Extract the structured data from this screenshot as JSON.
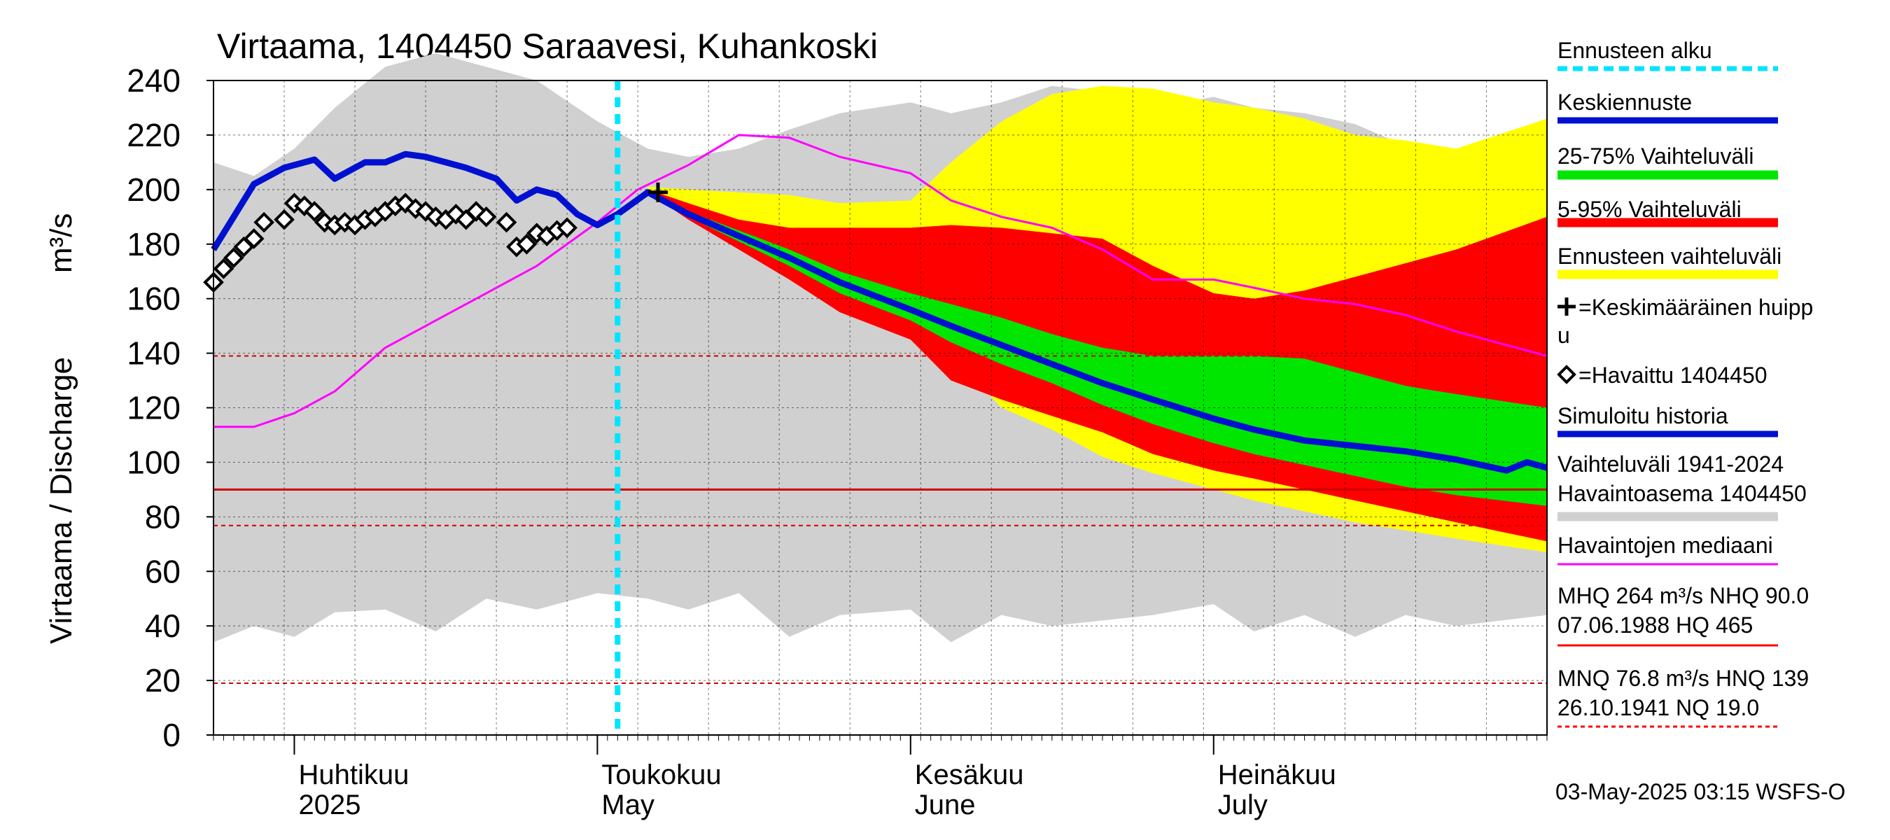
{
  "chart_data": {
    "type": "area",
    "title": "Virtaama, 1404450 Saraavesi, Kuhankoski",
    "ylabel": "Virtaama / Discharge",
    "yunit": "m³/s",
    "ylim": [
      0,
      240
    ],
    "yticks": [
      0,
      20,
      40,
      60,
      80,
      100,
      120,
      140,
      160,
      180,
      200,
      220,
      240
    ],
    "xlim": [
      "2025-03-24",
      "2025-08-03"
    ],
    "month_labels": [
      {
        "fi": "Huhtikuu",
        "en": "2025",
        "date": "2025-04-01"
      },
      {
        "fi": "Toukokuu",
        "en": "May",
        "date": "2025-05-01"
      },
      {
        "fi": "Kesäkuu",
        "en": "June",
        "date": "2025-06-01"
      },
      {
        "fi": "Heinäkuu",
        "en": "July",
        "date": "2025-07-01"
      }
    ],
    "forecast_start": "2025-05-03",
    "reference_lines": [
      {
        "name": "MHQ",
        "value": 264
      },
      {
        "name": "NHQ",
        "value": 90.0
      },
      {
        "name": "MNQ",
        "value": 76.8
      },
      {
        "name": "HNQ",
        "value": 139
      },
      {
        "name": "NQ",
        "value": 19.0
      }
    ],
    "mean_peak": {
      "date": "2025-05-07",
      "value": 199
    },
    "bands": {
      "history_range": {
        "x": [
          "2025-03-24",
          "2025-03-28",
          "2025-04-01",
          "2025-04-05",
          "2025-04-10",
          "2025-04-15",
          "2025-04-20",
          "2025-04-25",
          "2025-05-01",
          "2025-05-06",
          "2025-05-10",
          "2025-05-15",
          "2025-05-20",
          "2025-05-25",
          "2025-06-01",
          "2025-06-05",
          "2025-06-10",
          "2025-06-15",
          "2025-06-20",
          "2025-06-25",
          "2025-07-01",
          "2025-07-05",
          "2025-07-10",
          "2025-07-15",
          "2025-07-20",
          "2025-07-25",
          "2025-08-03"
        ],
        "upper": [
          210,
          205,
          215,
          230,
          245,
          250,
          245,
          240,
          225,
          215,
          212,
          215,
          222,
          228,
          232,
          228,
          232,
          238,
          236,
          230,
          234,
          230,
          228,
          224,
          216,
          214,
          220
        ],
        "lower": [
          34,
          40,
          36,
          45,
          46,
          38,
          50,
          46,
          52,
          50,
          46,
          52,
          36,
          44,
          46,
          34,
          44,
          40,
          42,
          44,
          48,
          38,
          44,
          36,
          44,
          40,
          44
        ]
      },
      "forecast_range": {
        "x": [
          "2025-05-06",
          "2025-05-10",
          "2025-05-15",
          "2025-05-20",
          "2025-05-25",
          "2025-06-01",
          "2025-06-05",
          "2025-06-10",
          "2025-06-15",
          "2025-06-20",
          "2025-06-25",
          "2025-07-01",
          "2025-07-05",
          "2025-07-10",
          "2025-07-15",
          "2025-07-20",
          "2025-07-25",
          "2025-08-03"
        ],
        "upper": [
          201,
          200,
          199,
          198,
          195,
          196,
          210,
          225,
          235,
          238,
          237,
          232,
          230,
          226,
          220,
          218,
          215,
          226
        ],
        "lower": [
          200,
          192,
          182,
          170,
          160,
          150,
          140,
          120,
          112,
          102,
          96,
          90,
          86,
          82,
          78,
          75,
          72,
          67
        ]
      },
      "p5_95": {
        "x": [
          "2025-05-06",
          "2025-05-10",
          "2025-05-15",
          "2025-05-20",
          "2025-05-25",
          "2025-06-01",
          "2025-06-05",
          "2025-06-10",
          "2025-06-15",
          "2025-06-20",
          "2025-06-25",
          "2025-07-01",
          "2025-07-05",
          "2025-07-10",
          "2025-07-15",
          "2025-07-20",
          "2025-07-25",
          "2025-08-03"
        ],
        "upper": [
          200,
          195,
          189,
          186,
          186,
          186,
          187,
          186,
          184,
          182,
          172,
          162,
          160,
          163,
          168,
          173,
          178,
          190
        ],
        "lower": [
          199,
          189,
          178,
          167,
          155,
          145,
          130,
          123,
          117,
          111,
          103,
          97,
          94,
          90,
          86,
          82,
          78,
          71
        ]
      },
      "p25_75": {
        "x": [
          "2025-05-06",
          "2025-05-10",
          "2025-05-15",
          "2025-05-20",
          "2025-05-25",
          "2025-06-01",
          "2025-06-05",
          "2025-06-10",
          "2025-06-15",
          "2025-06-20",
          "2025-06-25",
          "2025-07-01",
          "2025-07-05",
          "2025-07-10",
          "2025-07-15",
          "2025-07-20",
          "2025-07-25",
          "2025-08-03"
        ],
        "upper": [
          199,
          192,
          185,
          178,
          170,
          162,
          158,
          153,
          147,
          142,
          139,
          139,
          139,
          138,
          133,
          128,
          125,
          120
        ],
        "lower": [
          199,
          190,
          181,
          172,
          162,
          152,
          144,
          136,
          129,
          121,
          114,
          107,
          103,
          99,
          95,
          91,
          88,
          84
        ]
      }
    },
    "series": [
      {
        "name": "Keskiennuste",
        "x": [
          "2025-05-03",
          "2025-05-06",
          "2025-05-10",
          "2025-05-15",
          "2025-05-20",
          "2025-05-25",
          "2025-06-01",
          "2025-06-05",
          "2025-06-10",
          "2025-06-15",
          "2025-06-20",
          "2025-06-25",
          "2025-07-01",
          "2025-07-05",
          "2025-07-10",
          "2025-07-15",
          "2025-07-20",
          "2025-07-25",
          "2025-07-30",
          "2025-08-01",
          "2025-08-03"
        ],
        "y": [
          191,
          199,
          191,
          183,
          175,
          166,
          156,
          150,
          143,
          136,
          129,
          123,
          116,
          112,
          108,
          106,
          104,
          101,
          97,
          100,
          98
        ]
      },
      {
        "name": "Simuloitu historia",
        "x": [
          "2025-03-24",
          "2025-03-26",
          "2025-03-28",
          "2025-03-31",
          "2025-04-03",
          "2025-04-05",
          "2025-04-08",
          "2025-04-10",
          "2025-04-12",
          "2025-04-14",
          "2025-04-16",
          "2025-04-18",
          "2025-04-21",
          "2025-04-23",
          "2025-04-25",
          "2025-04-27",
          "2025-04-29",
          "2025-05-01",
          "2025-05-03"
        ],
        "y": [
          178,
          190,
          202,
          208,
          211,
          204,
          210,
          210,
          213,
          212,
          210,
          208,
          204,
          196,
          200,
          198,
          191,
          187,
          191
        ]
      },
      {
        "name": "Havaintojen mediaani",
        "x": [
          "2025-03-24",
          "2025-03-28",
          "2025-04-01",
          "2025-04-05",
          "2025-04-10",
          "2025-04-15",
          "2025-04-20",
          "2025-04-25",
          "2025-05-01",
          "2025-05-05",
          "2025-05-10",
          "2025-05-15",
          "2025-05-20",
          "2025-05-25",
          "2025-06-01",
          "2025-06-05",
          "2025-06-10",
          "2025-06-15",
          "2025-06-20",
          "2025-06-25",
          "2025-07-01",
          "2025-07-05",
          "2025-07-10",
          "2025-07-15",
          "2025-07-20",
          "2025-07-25",
          "2025-07-30",
          "2025-08-03"
        ],
        "y": [
          113,
          113,
          118,
          126,
          142,
          152,
          162,
          172,
          188,
          200,
          209,
          220,
          219,
          212,
          206,
          196,
          190,
          186,
          178,
          167,
          167,
          164,
          160,
          158,
          154,
          148,
          143,
          139
        ]
      }
    ],
    "observed": {
      "name": "Havaittu 1404450",
      "x": [
        "2025-03-24",
        "2025-03-25",
        "2025-03-26",
        "2025-03-27",
        "2025-03-28",
        "2025-03-29",
        "2025-03-31",
        "2025-04-01",
        "2025-04-02",
        "2025-04-03",
        "2025-04-04",
        "2025-04-05",
        "2025-04-06",
        "2025-04-07",
        "2025-04-08",
        "2025-04-09",
        "2025-04-10",
        "2025-04-11",
        "2025-04-12",
        "2025-04-13",
        "2025-04-14",
        "2025-04-15",
        "2025-04-16",
        "2025-04-17",
        "2025-04-18",
        "2025-04-19",
        "2025-04-20",
        "2025-04-22",
        "2025-04-23",
        "2025-04-24",
        "2025-04-25",
        "2025-04-26",
        "2025-04-27",
        "2025-04-28"
      ],
      "y": [
        166,
        171,
        175,
        179,
        182,
        188,
        189,
        195,
        194,
        192,
        188,
        187,
        188,
        187,
        189,
        190,
        192,
        194,
        195,
        193,
        192,
        190,
        189,
        191,
        189,
        192,
        190,
        188,
        179,
        180,
        184,
        183,
        185,
        186
      ]
    },
    "legend": [
      {
        "label": "Ennusteen alku",
        "color": "#00e5ff",
        "style": "dashed"
      },
      {
        "label": "Keskiennuste",
        "color": "#0010d0",
        "style": "thick"
      },
      {
        "label": "25-75% Vaihteluväli",
        "color": "#00e600",
        "style": "band"
      },
      {
        "label": "5-95% Vaihteluväli",
        "color": "#ff0000",
        "style": "band"
      },
      {
        "label": "Ennusteen vaihteluväli",
        "color": "#ffff00",
        "style": "band"
      },
      {
        "label": "=Keskimääräinen huipp",
        "label2": "u",
        "color": "#000000",
        "style": "plus"
      },
      {
        "label": "=Havaittu 1404450",
        "color": "#000000",
        "style": "diamond"
      },
      {
        "label": "Simuloitu historia",
        "color": "#0010d0",
        "style": "thick"
      },
      {
        "label": "Vaihteluväli 1941-2024",
        "label2": "Havaintoasema 1404450",
        "color": "#d0d0d0",
        "style": "band"
      },
      {
        "label": "Havaintojen mediaani",
        "color": "#ff00ff",
        "style": "line"
      },
      {
        "label": "MHQ  264 m³/s NHQ 90.0",
        "label2": "07.06.1988 HQ  465",
        "color": "#ff0000",
        "style": "line"
      },
      {
        "label": "MNQ 76.8 m³/s HNQ  139",
        "label2": "26.10.1941 NQ 19.0",
        "color": "#ff0000",
        "style": "dashed"
      }
    ],
    "colors": {
      "history": "#d0d0d0",
      "forecast_range": "#ffff00",
      "p5_95": "#ff0000",
      "p25_75": "#00e600",
      "mean_forecast": "#0010d0",
      "median": "#ff00ff",
      "forecast_start": "#00e5ff",
      "reference": "#cc0000"
    },
    "footer": "03-May-2025 03:15 WSFS-O"
  }
}
